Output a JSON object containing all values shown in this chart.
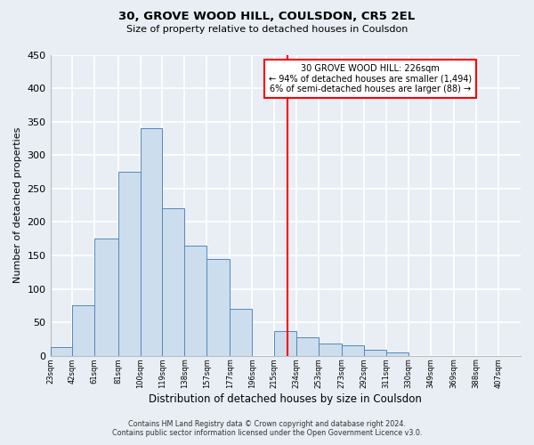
{
  "title": "30, GROVE WOOD HILL, COULSDON, CR5 2EL",
  "subtitle": "Size of property relative to detached houses in Coulsdon",
  "xlabel": "Distribution of detached houses by size in Coulsdon",
  "ylabel": "Number of detached properties",
  "bin_labels": [
    "23sqm",
    "42sqm",
    "61sqm",
    "81sqm",
    "100sqm",
    "119sqm",
    "138sqm",
    "157sqm",
    "177sqm",
    "196sqm",
    "215sqm",
    "234sqm",
    "253sqm",
    "273sqm",
    "292sqm",
    "311sqm",
    "330sqm",
    "349sqm",
    "369sqm",
    "388sqm",
    "407sqm"
  ],
  "bar_heights": [
    13,
    75,
    175,
    275,
    340,
    220,
    165,
    145,
    70,
    0,
    37,
    28,
    18,
    15,
    9,
    5,
    0,
    0,
    0,
    0
  ],
  "bar_color": "#ccdded",
  "bar_edge_color": "#5588bb",
  "ylim": [
    0,
    450
  ],
  "yticks": [
    0,
    50,
    100,
    150,
    200,
    250,
    300,
    350,
    400,
    450
  ],
  "marker_value": 226,
  "marker_line_color": "red",
  "annotation_title": "30 GROVE WOOD HILL: 226sqm",
  "annotation_line1": "← 94% of detached houses are smaller (1,494)",
  "annotation_line2": "6% of semi-detached houses are larger (88) →",
  "footer_line1": "Contains HM Land Registry data © Crown copyright and database right 2024.",
  "footer_line2": "Contains public sector information licensed under the Open Government Licence v3.0.",
  "background_color": "#e8eef4",
  "grid_color": "#ffffff",
  "bin_edges": [
    23,
    42,
    61,
    81,
    100,
    119,
    138,
    157,
    177,
    196,
    215,
    234,
    253,
    273,
    292,
    311,
    330,
    349,
    369,
    388,
    407
  ],
  "xlim_right": 426
}
